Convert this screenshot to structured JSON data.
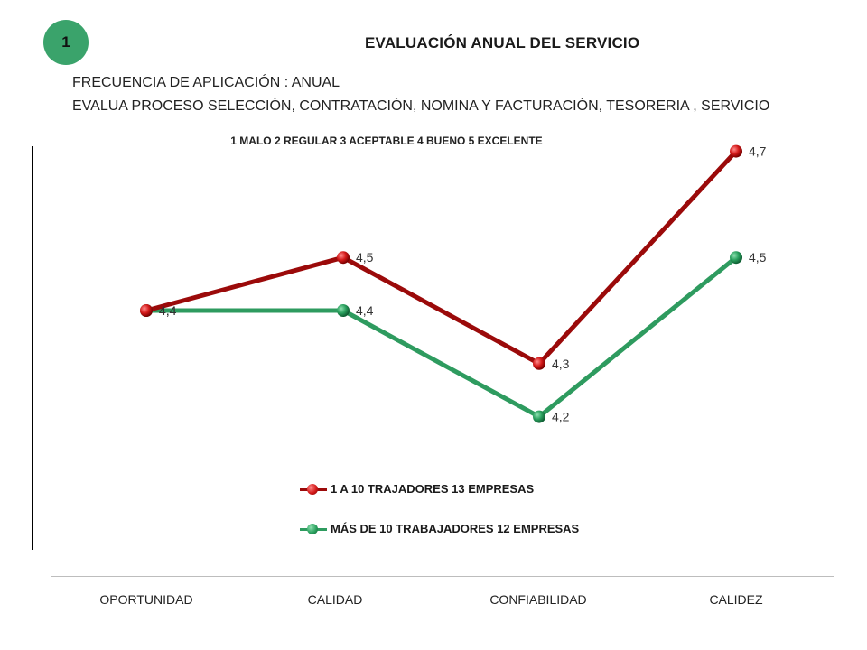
{
  "badge": "1",
  "title": "EVALUACIÓN  ANUAL DEL SERVICIO",
  "subtitle_frequency": "FRECUENCIA DE APLICACIÓN : ANUAL",
  "subtitle_processes": "EVALUA PROCESO SELECCIÓN, CONTRATACIÓN,  NOMINA Y FACTURACIÓN, TESORERIA , SERVICIO",
  "scale_note": "1 MALO  2 REGULAR 3 ACEPTABLE 4 BUENO  5  EXCELENTE",
  "colors": {
    "badge": "#3aa36b",
    "series1": "#9b0a0a",
    "series2": "#2e9b5f"
  },
  "chart_data": {
    "type": "line",
    "categories": [
      "OPORTUNIDAD",
      "CALIDAD",
      "CONFIABILIDAD",
      "CALIDEZ"
    ],
    "series": [
      {
        "name": "1 A 10 TRAJADORES   13 EMPRESAS",
        "values": [
          4.4,
          4.5,
          4.3,
          4.7
        ],
        "labels": [
          "4,4",
          "4,5",
          "4,3",
          "4,7"
        ],
        "color": "#9b0a0a"
      },
      {
        "name": "MÁS DE 10 TRABAJADORES 12 EMPRESAS",
        "values": [
          4.4,
          4.4,
          4.2,
          4.5
        ],
        "labels": [
          "4,4",
          "4,4",
          "4,2",
          "4,5"
        ],
        "color": "#2e9b5f"
      }
    ],
    "data_labels": true,
    "markers": "sphere",
    "legend_position": "bottom",
    "grid": false
  }
}
